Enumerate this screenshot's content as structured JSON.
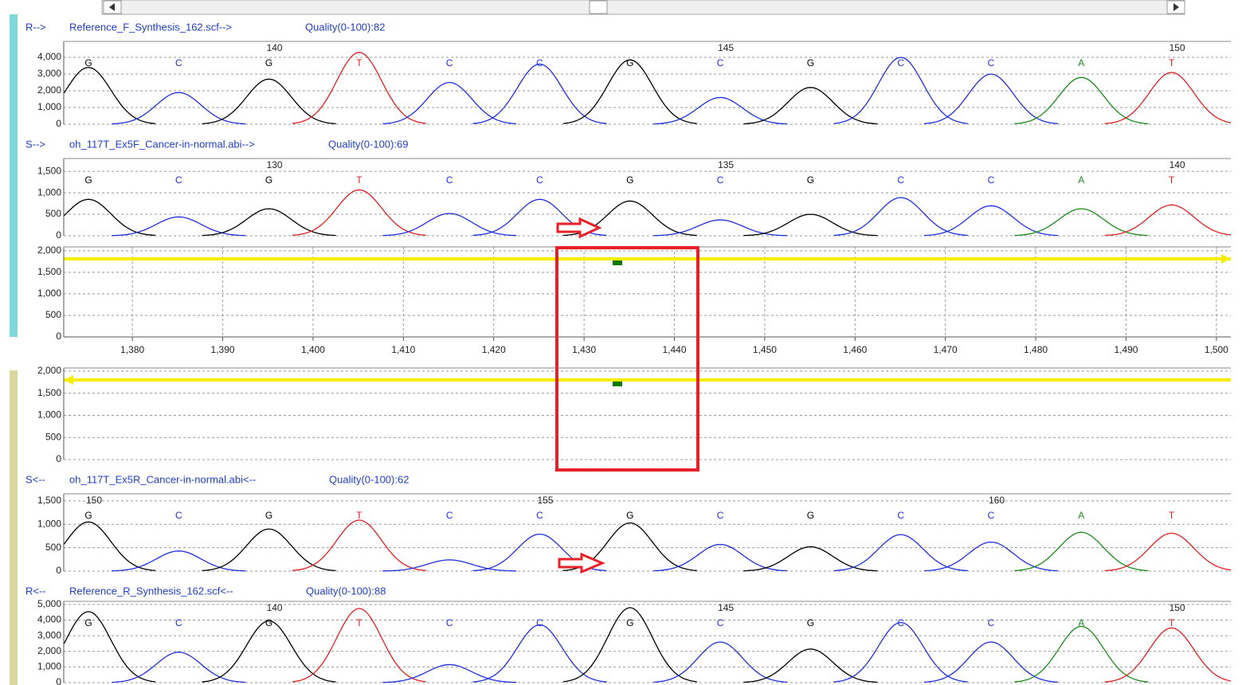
{
  "panels": [
    {
      "type": "trace",
      "label": "R-->",
      "file": "Reference_F_Synthesis_162.scf-->",
      "quality": "Quality(0-100):82",
      "ylim": [
        0,
        4950
      ],
      "yticks": [
        0,
        {
          "value": 1000,
          "label": "1,000"
        },
        {
          "value": 2000,
          "label": "2,000"
        },
        {
          "value": 3000,
          "label": "3,000"
        },
        {
          "value": 4000,
          "label": "4,000"
        }
      ],
      "bases": [
        "G",
        "C",
        "G",
        "T",
        "C",
        "C",
        "G",
        "C",
        "G",
        "C",
        "C",
        "A",
        "T"
      ],
      "positions": [
        null,
        null,
        140,
        null,
        null,
        null,
        null,
        145,
        null,
        null,
        null,
        null,
        150
      ],
      "heights": [
        3400,
        1900,
        2700,
        4300,
        2500,
        3600,
        3850,
        1600,
        2200,
        4000,
        3000,
        2800,
        3100
      ]
    },
    {
      "type": "trace",
      "label": "S-->",
      "file": "oh_117T_Ex5F_Cancer-in-normal.abi-->",
      "quality": "Quality(0-100):69",
      "ylim": [
        0,
        1800
      ],
      "yticks": [
        0,
        500,
        {
          "value": 1000,
          "label": "1,000"
        },
        {
          "value": 1500,
          "label": "1,500"
        }
      ],
      "bases": [
        "G",
        "C",
        "G",
        "T",
        "C",
        "C",
        "G",
        "C",
        "G",
        "C",
        "C",
        "A",
        "T"
      ],
      "positions": [
        null,
        null,
        130,
        null,
        null,
        null,
        null,
        135,
        null,
        null,
        null,
        null,
        140
      ],
      "heights": [
        850,
        440,
        630,
        1070,
        520,
        850,
        810,
        370,
        500,
        890,
        700,
        630,
        720
      ]
    },
    {
      "type": "difference",
      "arrow": "right",
      "ylim": [
        0,
        2090
      ],
      "yticks": [
        0,
        500,
        {
          "value": 1000,
          "label": "1,000"
        },
        {
          "value": 1500,
          "label": "1,500"
        },
        {
          "value": 2000,
          "label": "2,000"
        }
      ],
      "xlim": [
        1372.4,
        1501.6
      ],
      "xticks": [
        {
          "value": 1380,
          "label": "1,380"
        },
        {
          "value": 1390,
          "label": "1,390"
        },
        {
          "value": 1400,
          "label": "1,400"
        },
        {
          "value": 1410,
          "label": "1,410"
        },
        {
          "value": 1420,
          "label": "1,420"
        },
        {
          "value": 1430,
          "label": "1,430"
        },
        {
          "value": 1440,
          "label": "1,440"
        },
        {
          "value": 1450,
          "label": "1,450"
        },
        {
          "value": 1460,
          "label": "1,460"
        },
        {
          "value": 1470,
          "label": "1,470"
        },
        {
          "value": 1480,
          "label": "1,480"
        },
        {
          "value": 1490,
          "label": "1,490"
        },
        {
          "value": 1500,
          "label": "1,500"
        }
      ]
    },
    {
      "type": "difference",
      "arrow": "left",
      "ylim": [
        0,
        2070
      ],
      "yticks": [
        0,
        500,
        {
          "value": 1000,
          "label": "1,000"
        },
        {
          "value": 1500,
          "label": "1,500"
        },
        {
          "value": 2000,
          "label": "2,000"
        }
      ]
    },
    {
      "type": "trace",
      "label": "S<--",
      "file": "oh_117T_Ex5R_Cancer-in-normal.abi<--",
      "quality": "Quality(0-100):62",
      "ylim": [
        0,
        1650
      ],
      "yticks": [
        0,
        500,
        {
          "value": 1000,
          "label": "1,000"
        },
        {
          "value": 1500,
          "label": "1,500"
        }
      ],
      "bases": [
        "G",
        "C",
        "G",
        "T",
        "C",
        "C",
        "G",
        "C",
        "G",
        "C",
        "C",
        "A",
        "T"
      ],
      "positions": [
        150,
        null,
        null,
        null,
        null,
        155,
        null,
        null,
        null,
        null,
        160,
        null,
        null
      ],
      "heights": [
        1050,
        430,
        900,
        1090,
        240,
        790,
        1030,
        570,
        520,
        780,
        620,
        830,
        810
      ]
    },
    {
      "type": "trace",
      "label": "R<--",
      "file": "Reference_R_Synthesis_162.scf<--",
      "quality": "Quality(0-100):88",
      "ylim": [
        0,
        5200
      ],
      "yticks": [
        0,
        {
          "value": 1000,
          "label": "1,000"
        },
        {
          "value": 2000,
          "label": "2,000"
        },
        {
          "value": 3000,
          "label": "3,000"
        },
        {
          "value": 4000,
          "label": "4,000"
        },
        {
          "value": 5000,
          "label": "5,000"
        }
      ],
      "bases": [
        "G",
        "C",
        "G",
        "T",
        "C",
        "C",
        "G",
        "C",
        "G",
        "C",
        "C",
        "A",
        "T"
      ],
      "positions": [
        null,
        null,
        140,
        null,
        null,
        null,
        null,
        145,
        null,
        null,
        null,
        null,
        150
      ],
      "heights": [
        4550,
        1950,
        3950,
        4750,
        1150,
        3700,
        4800,
        2600,
        2150,
        3850,
        2600,
        3600,
        3500
      ]
    }
  ]
}
